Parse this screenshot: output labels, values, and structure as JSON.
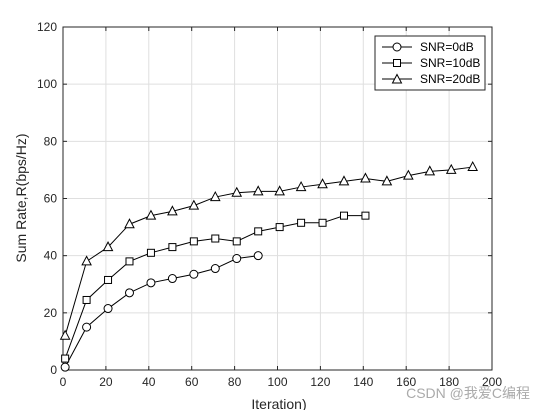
{
  "chart_data": {
    "type": "line",
    "title": "",
    "xlabel": "Iteration)",
    "ylabel": "Sum Rate,R(bps/Hz)",
    "xlim": [
      0,
      200
    ],
    "ylim": [
      0,
      120
    ],
    "xticks": [
      0,
      20,
      40,
      60,
      80,
      100,
      120,
      140,
      160,
      180,
      200
    ],
    "yticks": [
      0,
      20,
      40,
      60,
      80,
      100,
      120
    ],
    "grid": true,
    "legend_position": "top-right",
    "series": [
      {
        "name": "SNR=0dB",
        "marker": "circle",
        "x": [
          1,
          11,
          21,
          31,
          41,
          51,
          61,
          71,
          81,
          91
        ],
        "y": [
          1,
          15,
          21.5,
          27,
          30.5,
          32,
          33.5,
          35.5,
          39,
          40
        ]
      },
      {
        "name": "SNR=10dB",
        "marker": "square",
        "x": [
          1,
          11,
          21,
          31,
          41,
          51,
          61,
          71,
          81,
          91,
          101,
          111,
          121,
          131,
          141
        ],
        "y": [
          4,
          24.5,
          31.5,
          38,
          41,
          43,
          45,
          46,
          45,
          48.5,
          50,
          51.5,
          51.5,
          54,
          54
        ]
      },
      {
        "name": "SNR=20dB",
        "marker": "triangle",
        "x": [
          1,
          11,
          21,
          31,
          41,
          51,
          61,
          71,
          81,
          91,
          101,
          111,
          121,
          131,
          141,
          151,
          161,
          171,
          181,
          191
        ],
        "y": [
          12,
          38,
          43,
          51,
          54,
          55.5,
          57.5,
          60.5,
          62,
          62.5,
          62.5,
          64,
          65,
          66,
          67,
          66,
          68,
          69.5,
          70,
          71
        ]
      }
    ]
  },
  "watermark": "CSDN @我爱C编程",
  "colors": {
    "line": "#000000",
    "grid": "#dfdfdf",
    "axis": "#262626",
    "background": "#ffffff"
  }
}
